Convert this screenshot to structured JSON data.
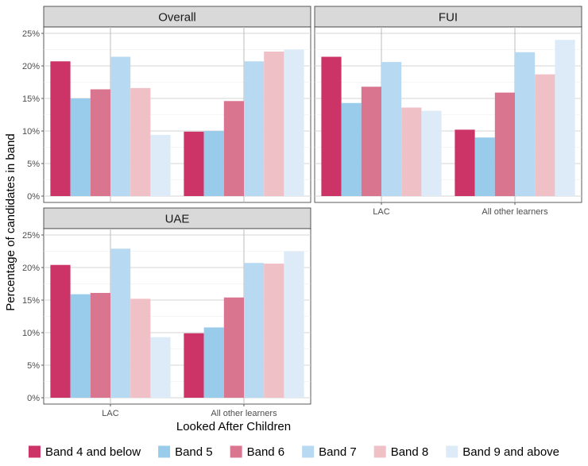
{
  "chart_data": {
    "type": "bar",
    "xlabel": "Looked After Children",
    "ylabel": "Percentage of candidates in band",
    "ylim": [
      0,
      25
    ],
    "yticks": [
      "0%",
      "5%",
      "10%",
      "15%",
      "20%",
      "25%"
    ],
    "ytick_values": [
      0,
      5,
      10,
      15,
      20,
      25
    ],
    "categories": [
      "LAC",
      "All other learners"
    ],
    "grid": true,
    "legend_position": "bottom",
    "series_names": [
      "Band 4 and below",
      "Band 5",
      "Band 6",
      "Band 7",
      "Band 8",
      "Band 9 and above"
    ],
    "series_colors": [
      "#cc3366",
      "#99cceb",
      "#d9758f",
      "#b8d9f2",
      "#f0c0c7",
      "#dcebf7"
    ],
    "facets": [
      {
        "title": "Overall",
        "values": [
          [
            20.7,
            15.0,
            16.4,
            21.4,
            16.6,
            9.4
          ],
          [
            9.9,
            10.0,
            14.6,
            20.7,
            22.2,
            22.5
          ]
        ]
      },
      {
        "title": "FUI",
        "values": [
          [
            21.4,
            14.3,
            16.8,
            20.6,
            13.6,
            13.1
          ],
          [
            10.2,
            9.0,
            15.9,
            22.1,
            18.7,
            24.0
          ]
        ]
      },
      {
        "title": "UAE",
        "values": [
          [
            20.4,
            15.9,
            16.1,
            22.9,
            15.2,
            9.3
          ],
          [
            9.9,
            10.8,
            15.4,
            20.7,
            20.6,
            22.5
          ]
        ]
      }
    ]
  }
}
